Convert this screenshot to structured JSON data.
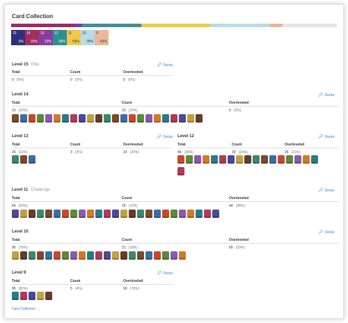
{
  "title": "Card Collection",
  "bar": [
    {
      "color": "#9e2a63",
      "w": 0.19
    },
    {
      "color": "#7c3aa8",
      "w": 0.025
    },
    {
      "color": "#3f8f95",
      "w": 0.18
    },
    {
      "color": "#f0c84a",
      "w": 0.21
    },
    {
      "color": "#b7dbe8",
      "w": 0.18
    },
    {
      "color": "#e8b898",
      "w": 0.04
    },
    {
      "color": "#e5e5e5",
      "w": 0.165
    }
  ],
  "chips": [
    {
      "level": "15",
      "pct": "0%",
      "color": "#2f2f7a"
    },
    {
      "level": "14",
      "pct": "20%",
      "color": "#a22e5f"
    },
    {
      "level": "13",
      "pct": "22%",
      "color": "#8a3d9e"
    },
    {
      "level": "12",
      "pct": "38%",
      "color": "#2f8e8e"
    },
    {
      "level": "11",
      "pct": "59%",
      "color": "#f0c84a",
      "dark": true
    },
    {
      "level": "10",
      "pct": "78%",
      "color": "#b7dbe8",
      "dark": true
    },
    {
      "level": "9",
      "pct": "82%",
      "color": "#e8b898",
      "dark": true
    }
  ],
  "decks_label": "Decks",
  "stat_labels": {
    "total": "Total",
    "count": "Count",
    "over": "Overleveled"
  },
  "sections": {
    "l15": {
      "title": "Level 15",
      "sub": "Elite",
      "total": "0",
      "total_p": "(0%)",
      "count": "0",
      "count_p": "(0%)",
      "over": "0",
      "over_p": "(0%)"
    },
    "l14": {
      "title": "Level 14",
      "total": "23",
      "total_p": "(20%)",
      "count": "23",
      "count_p": "(20%)",
      "over": "0",
      "over_p": "(0%)"
    },
    "l13": {
      "title": "Level 13",
      "total": "26",
      "total_p": "(22%)",
      "count": "3",
      "count_p": "(3%)",
      "over": "23",
      "over_p": "(20%)"
    },
    "l12": {
      "title": "Level 12",
      "total": "44",
      "total_p": "(38%)",
      "count": "18",
      "count_p": "(16%)",
      "over": "26",
      "over_p": "(22%)"
    },
    "l11": {
      "title": "Level 11",
      "sub": "Challenge",
      "total": "69",
      "total_p": "(59%)",
      "count": "25",
      "count_p": "(22%)",
      "over": "44",
      "over_p": "(38%)"
    },
    "l10": {
      "title": "Level 10",
      "total": "90",
      "total_p": "(78%)",
      "count": "21",
      "count_p": "(18%)",
      "over": "69",
      "over_p": "(59%)"
    },
    "l9": {
      "title": "Level 9",
      "total": "95",
      "total_p": "(82%)",
      "count": "5",
      "count_p": "(4%)",
      "over": "90",
      "over_p": "(78%)"
    }
  },
  "card_colors": [
    "#7a4a2a",
    "#3a6ea8",
    "#c94a2a",
    "#5a8a3a",
    "#8a5ab0",
    "#d07a2a",
    "#2a7a8a",
    "#b03a5a",
    "#4a4a9a",
    "#c0a040",
    "#6a3a2a",
    "#3a8a6a"
  ],
  "footer_link": "Card Collection →"
}
